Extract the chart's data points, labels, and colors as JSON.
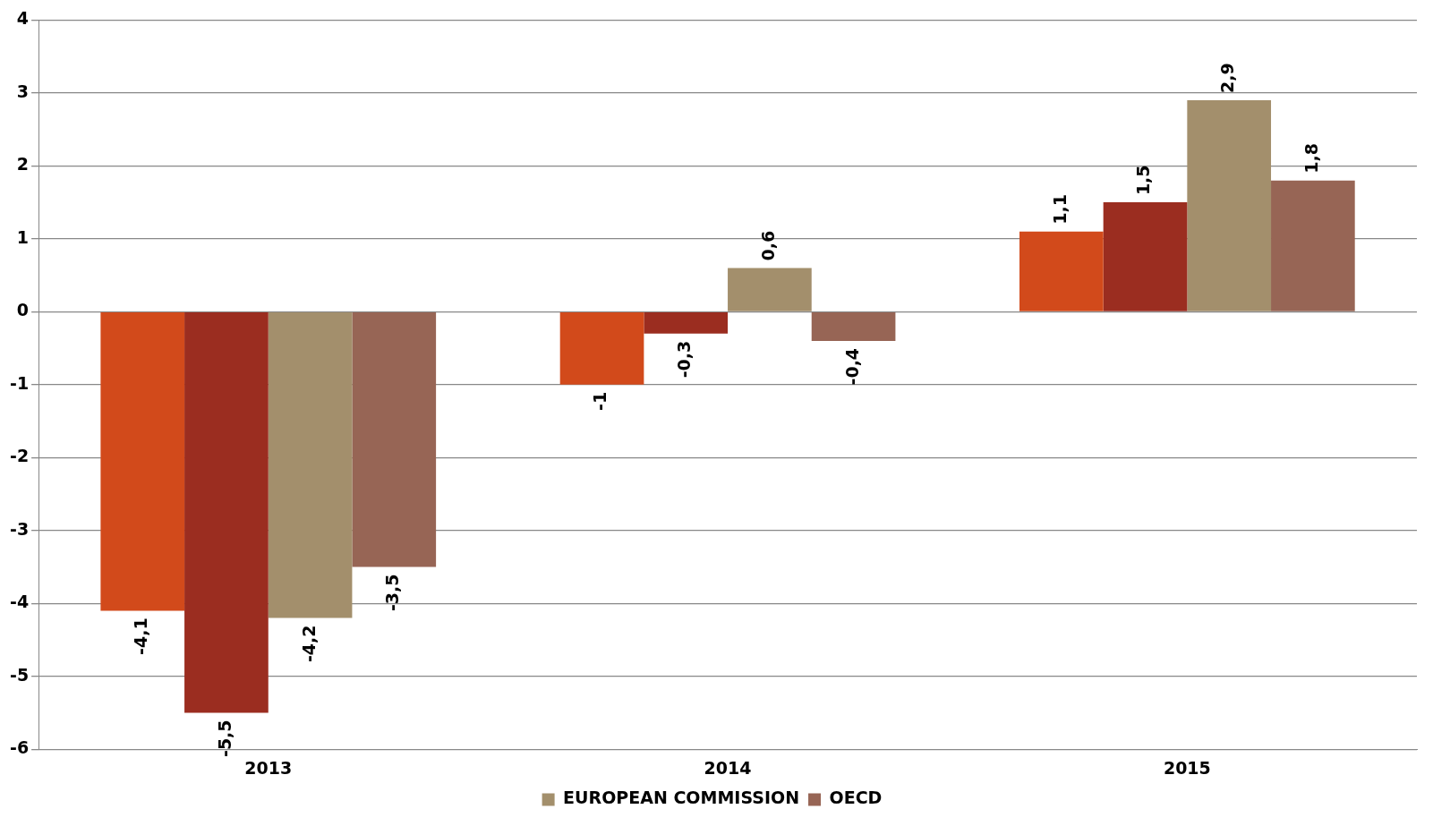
{
  "chart_data": {
    "type": "bar",
    "categories": [
      "2013",
      "2014",
      "2015"
    ],
    "series": [
      {
        "color": "#d24a1b",
        "values": [
          -4.1,
          -1,
          1.1
        ],
        "value_labels": [
          "-4,1",
          "-1",
          "1,1"
        ]
      },
      {
        "color": "#9b2d20",
        "values": [
          -5.5,
          -0.3,
          1.5
        ],
        "value_labels": [
          "-5,5",
          "-0,3",
          "1,5"
        ]
      },
      {
        "name": "EUROPEAN COMMISSION",
        "color": "#a38f6c",
        "values": [
          -4.2,
          0.6,
          2.9
        ],
        "value_labels": [
          "-4,2",
          "0,6",
          "2,9"
        ]
      },
      {
        "name": "OECD",
        "color": "#976555",
        "values": [
          -3.5,
          -0.4,
          1.8
        ],
        "value_labels": [
          "-3,5",
          "-0,4",
          "1,8"
        ]
      }
    ],
    "ylim": [
      -6,
      4
    ],
    "yticks": [
      -6,
      -5,
      -4,
      -3,
      -2,
      -1,
      0,
      1,
      2,
      3,
      4
    ],
    "grid": "y",
    "legend": "bottom"
  }
}
